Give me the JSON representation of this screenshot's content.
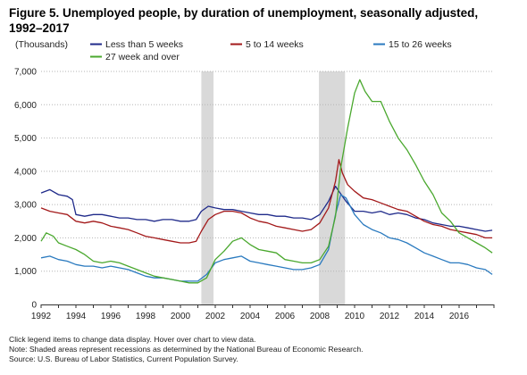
{
  "title": "Figure 5. Unemployed people, by duration of unemployment, seasonally adjusted, 1992–2017",
  "notes": {
    "line1": "Click legend items to change data display. Hover over chart to view data.",
    "line2": "Note: Shaded areas represent recessions as determined by the National Bureau of Economic Research.",
    "line3": "Source: U.S. Bureau of Labor Statistics, Current Population Survey."
  },
  "chart_data": {
    "type": "line",
    "unit_label": "(Thousands)",
    "title": "Figure 5. Unemployed people, by duration of unemployment, seasonally adjusted, 1992–2017",
    "xlabel": "",
    "ylabel": "",
    "xlim": [
      1992,
      2018
    ],
    "ylim": [
      0,
      7000
    ],
    "yticks": [
      0,
      1000,
      2000,
      3000,
      4000,
      5000,
      6000,
      7000
    ],
    "ytick_labels": [
      "0",
      "1,000",
      "2,000",
      "3,000",
      "4,000",
      "5,000",
      "6,000",
      "7,000"
    ],
    "xticks": [
      1992,
      1994,
      1996,
      1998,
      2000,
      2002,
      2004,
      2006,
      2008,
      2010,
      2012,
      2014,
      2016
    ],
    "xtick_labels": [
      "1992",
      "1994",
      "1996",
      "1998",
      "2000",
      "2002",
      "2004",
      "2006",
      "2008",
      "2010",
      "2012",
      "2014",
      "2016"
    ],
    "grid": "horizontal dotted",
    "legend_position": "top",
    "recessions": [
      [
        2001.2,
        2001.9
      ],
      [
        2007.95,
        2009.45
      ]
    ],
    "series": [
      {
        "name": "Less than 5 weeks",
        "color": "#1f2a8a",
        "points": [
          [
            1992.0,
            3350
          ],
          [
            1992.5,
            3450
          ],
          [
            1993.0,
            3300
          ],
          [
            1993.5,
            3250
          ],
          [
            1993.8,
            3150
          ],
          [
            1994.0,
            2700
          ],
          [
            1994.5,
            2650
          ],
          [
            1995.0,
            2700
          ],
          [
            1995.5,
            2700
          ],
          [
            1996.0,
            2650
          ],
          [
            1996.5,
            2600
          ],
          [
            1997.0,
            2600
          ],
          [
            1997.5,
            2550
          ],
          [
            1998.0,
            2550
          ],
          [
            1998.5,
            2500
          ],
          [
            1999.0,
            2550
          ],
          [
            1999.5,
            2550
          ],
          [
            2000.0,
            2500
          ],
          [
            2000.5,
            2500
          ],
          [
            2000.9,
            2550
          ],
          [
            2001.2,
            2800
          ],
          [
            2001.6,
            2950
          ],
          [
            2002.0,
            2900
          ],
          [
            2002.5,
            2850
          ],
          [
            2003.0,
            2850
          ],
          [
            2003.5,
            2800
          ],
          [
            2004.0,
            2750
          ],
          [
            2004.5,
            2700
          ],
          [
            2005.0,
            2700
          ],
          [
            2005.5,
            2650
          ],
          [
            2006.0,
            2650
          ],
          [
            2006.5,
            2600
          ],
          [
            2007.0,
            2600
          ],
          [
            2007.5,
            2550
          ],
          [
            2008.0,
            2700
          ],
          [
            2008.5,
            3100
          ],
          [
            2008.9,
            3550
          ],
          [
            2009.1,
            3400
          ],
          [
            2009.5,
            3100
          ],
          [
            2010.0,
            2800
          ],
          [
            2010.5,
            2800
          ],
          [
            2011.0,
            2750
          ],
          [
            2011.5,
            2800
          ],
          [
            2012.0,
            2700
          ],
          [
            2012.5,
            2750
          ],
          [
            2013.0,
            2700
          ],
          [
            2013.5,
            2600
          ],
          [
            2014.0,
            2550
          ],
          [
            2014.5,
            2450
          ],
          [
            2015.0,
            2400
          ],
          [
            2015.5,
            2350
          ],
          [
            2016.0,
            2350
          ],
          [
            2016.5,
            2300
          ],
          [
            2017.0,
            2250
          ],
          [
            2017.5,
            2200
          ],
          [
            2017.9,
            2230
          ]
        ]
      },
      {
        "name": "5 to 14 weeks",
        "color": "#a3191a",
        "points": [
          [
            1992.0,
            2900
          ],
          [
            1992.5,
            2800
          ],
          [
            1993.0,
            2750
          ],
          [
            1993.5,
            2700
          ],
          [
            1994.0,
            2500
          ],
          [
            1994.5,
            2450
          ],
          [
            1995.0,
            2500
          ],
          [
            1995.5,
            2450
          ],
          [
            1996.0,
            2350
          ],
          [
            1996.5,
            2300
          ],
          [
            1997.0,
            2250
          ],
          [
            1997.5,
            2150
          ],
          [
            1998.0,
            2050
          ],
          [
            1998.5,
            2000
          ],
          [
            1999.0,
            1950
          ],
          [
            1999.5,
            1900
          ],
          [
            2000.0,
            1850
          ],
          [
            2000.5,
            1850
          ],
          [
            2000.9,
            1900
          ],
          [
            2001.2,
            2200
          ],
          [
            2001.6,
            2550
          ],
          [
            2002.0,
            2700
          ],
          [
            2002.5,
            2800
          ],
          [
            2003.0,
            2800
          ],
          [
            2003.5,
            2750
          ],
          [
            2004.0,
            2600
          ],
          [
            2004.5,
            2500
          ],
          [
            2005.0,
            2450
          ],
          [
            2005.5,
            2350
          ],
          [
            2006.0,
            2300
          ],
          [
            2006.5,
            2250
          ],
          [
            2007.0,
            2200
          ],
          [
            2007.5,
            2250
          ],
          [
            2008.0,
            2450
          ],
          [
            2008.5,
            2900
          ],
          [
            2008.9,
            3700
          ],
          [
            2009.1,
            4350
          ],
          [
            2009.3,
            3950
          ],
          [
            2009.6,
            3600
          ],
          [
            2010.0,
            3400
          ],
          [
            2010.5,
            3200
          ],
          [
            2011.0,
            3150
          ],
          [
            2011.5,
            3050
          ],
          [
            2012.0,
            2950
          ],
          [
            2012.5,
            2850
          ],
          [
            2013.0,
            2800
          ],
          [
            2013.5,
            2650
          ],
          [
            2014.0,
            2500
          ],
          [
            2014.5,
            2400
          ],
          [
            2015.0,
            2350
          ],
          [
            2015.5,
            2250
          ],
          [
            2016.0,
            2200
          ],
          [
            2016.5,
            2150
          ],
          [
            2017.0,
            2100
          ],
          [
            2017.5,
            2000
          ],
          [
            2017.9,
            2000
          ]
        ]
      },
      {
        "name": "15 to 26 weeks",
        "color": "#2a7abf",
        "points": [
          [
            1992.0,
            1400
          ],
          [
            1992.5,
            1450
          ],
          [
            1993.0,
            1350
          ],
          [
            1993.5,
            1300
          ],
          [
            1994.0,
            1200
          ],
          [
            1994.5,
            1150
          ],
          [
            1995.0,
            1150
          ],
          [
            1995.5,
            1100
          ],
          [
            1996.0,
            1150
          ],
          [
            1996.5,
            1100
          ],
          [
            1997.0,
            1050
          ],
          [
            1997.5,
            950
          ],
          [
            1998.0,
            850
          ],
          [
            1998.5,
            800
          ],
          [
            1999.0,
            800
          ],
          [
            1999.5,
            750
          ],
          [
            2000.0,
            700
          ],
          [
            2000.5,
            700
          ],
          [
            2001.0,
            700
          ],
          [
            2001.5,
            900
          ],
          [
            2002.0,
            1250
          ],
          [
            2002.5,
            1350
          ],
          [
            2003.0,
            1400
          ],
          [
            2003.5,
            1450
          ],
          [
            2004.0,
            1300
          ],
          [
            2004.5,
            1250
          ],
          [
            2005.0,
            1200
          ],
          [
            2005.5,
            1150
          ],
          [
            2006.0,
            1100
          ],
          [
            2006.5,
            1050
          ],
          [
            2007.0,
            1050
          ],
          [
            2007.5,
            1100
          ],
          [
            2008.0,
            1200
          ],
          [
            2008.5,
            1650
          ],
          [
            2008.9,
            2700
          ],
          [
            2009.2,
            3300
          ],
          [
            2009.5,
            3200
          ],
          [
            2010.0,
            2700
          ],
          [
            2010.5,
            2400
          ],
          [
            2011.0,
            2250
          ],
          [
            2011.5,
            2150
          ],
          [
            2012.0,
            2000
          ],
          [
            2012.5,
            1950
          ],
          [
            2013.0,
            1850
          ],
          [
            2013.5,
            1700
          ],
          [
            2014.0,
            1550
          ],
          [
            2014.5,
            1450
          ],
          [
            2015.0,
            1350
          ],
          [
            2015.5,
            1250
          ],
          [
            2016.0,
            1250
          ],
          [
            2016.5,
            1200
          ],
          [
            2017.0,
            1100
          ],
          [
            2017.5,
            1050
          ],
          [
            2017.9,
            900
          ]
        ]
      },
      {
        "name": "27 week and over",
        "color": "#4aa82e",
        "points": [
          [
            1992.0,
            1900
          ],
          [
            1992.3,
            2150
          ],
          [
            1992.7,
            2050
          ],
          [
            1993.0,
            1850
          ],
          [
            1993.5,
            1750
          ],
          [
            1994.0,
            1650
          ],
          [
            1994.5,
            1500
          ],
          [
            1995.0,
            1300
          ],
          [
            1995.5,
            1250
          ],
          [
            1996.0,
            1300
          ],
          [
            1996.5,
            1250
          ],
          [
            1997.0,
            1150
          ],
          [
            1997.5,
            1050
          ],
          [
            1998.0,
            950
          ],
          [
            1998.5,
            850
          ],
          [
            1999.0,
            800
          ],
          [
            1999.5,
            750
          ],
          [
            2000.0,
            700
          ],
          [
            2000.5,
            650
          ],
          [
            2001.0,
            650
          ],
          [
            2001.5,
            800
          ],
          [
            2002.0,
            1350
          ],
          [
            2002.5,
            1600
          ],
          [
            2003.0,
            1900
          ],
          [
            2003.5,
            2000
          ],
          [
            2004.0,
            1800
          ],
          [
            2004.5,
            1650
          ],
          [
            2005.0,
            1600
          ],
          [
            2005.5,
            1550
          ],
          [
            2006.0,
            1350
          ],
          [
            2006.5,
            1300
          ],
          [
            2007.0,
            1250
          ],
          [
            2007.5,
            1250
          ],
          [
            2008.0,
            1350
          ],
          [
            2008.5,
            1750
          ],
          [
            2008.9,
            2650
          ],
          [
            2009.2,
            4100
          ],
          [
            2009.6,
            5300
          ],
          [
            2010.0,
            6350
          ],
          [
            2010.3,
            6750
          ],
          [
            2010.6,
            6400
          ],
          [
            2011.0,
            6100
          ],
          [
            2011.5,
            6100
          ],
          [
            2012.0,
            5500
          ],
          [
            2012.5,
            5000
          ],
          [
            2013.0,
            4650
          ],
          [
            2013.5,
            4200
          ],
          [
            2014.0,
            3700
          ],
          [
            2014.5,
            3300
          ],
          [
            2015.0,
            2750
          ],
          [
            2015.5,
            2500
          ],
          [
            2016.0,
            2150
          ],
          [
            2016.5,
            2000
          ],
          [
            2017.0,
            1850
          ],
          [
            2017.5,
            1700
          ],
          [
            2017.9,
            1550
          ]
        ]
      }
    ]
  }
}
